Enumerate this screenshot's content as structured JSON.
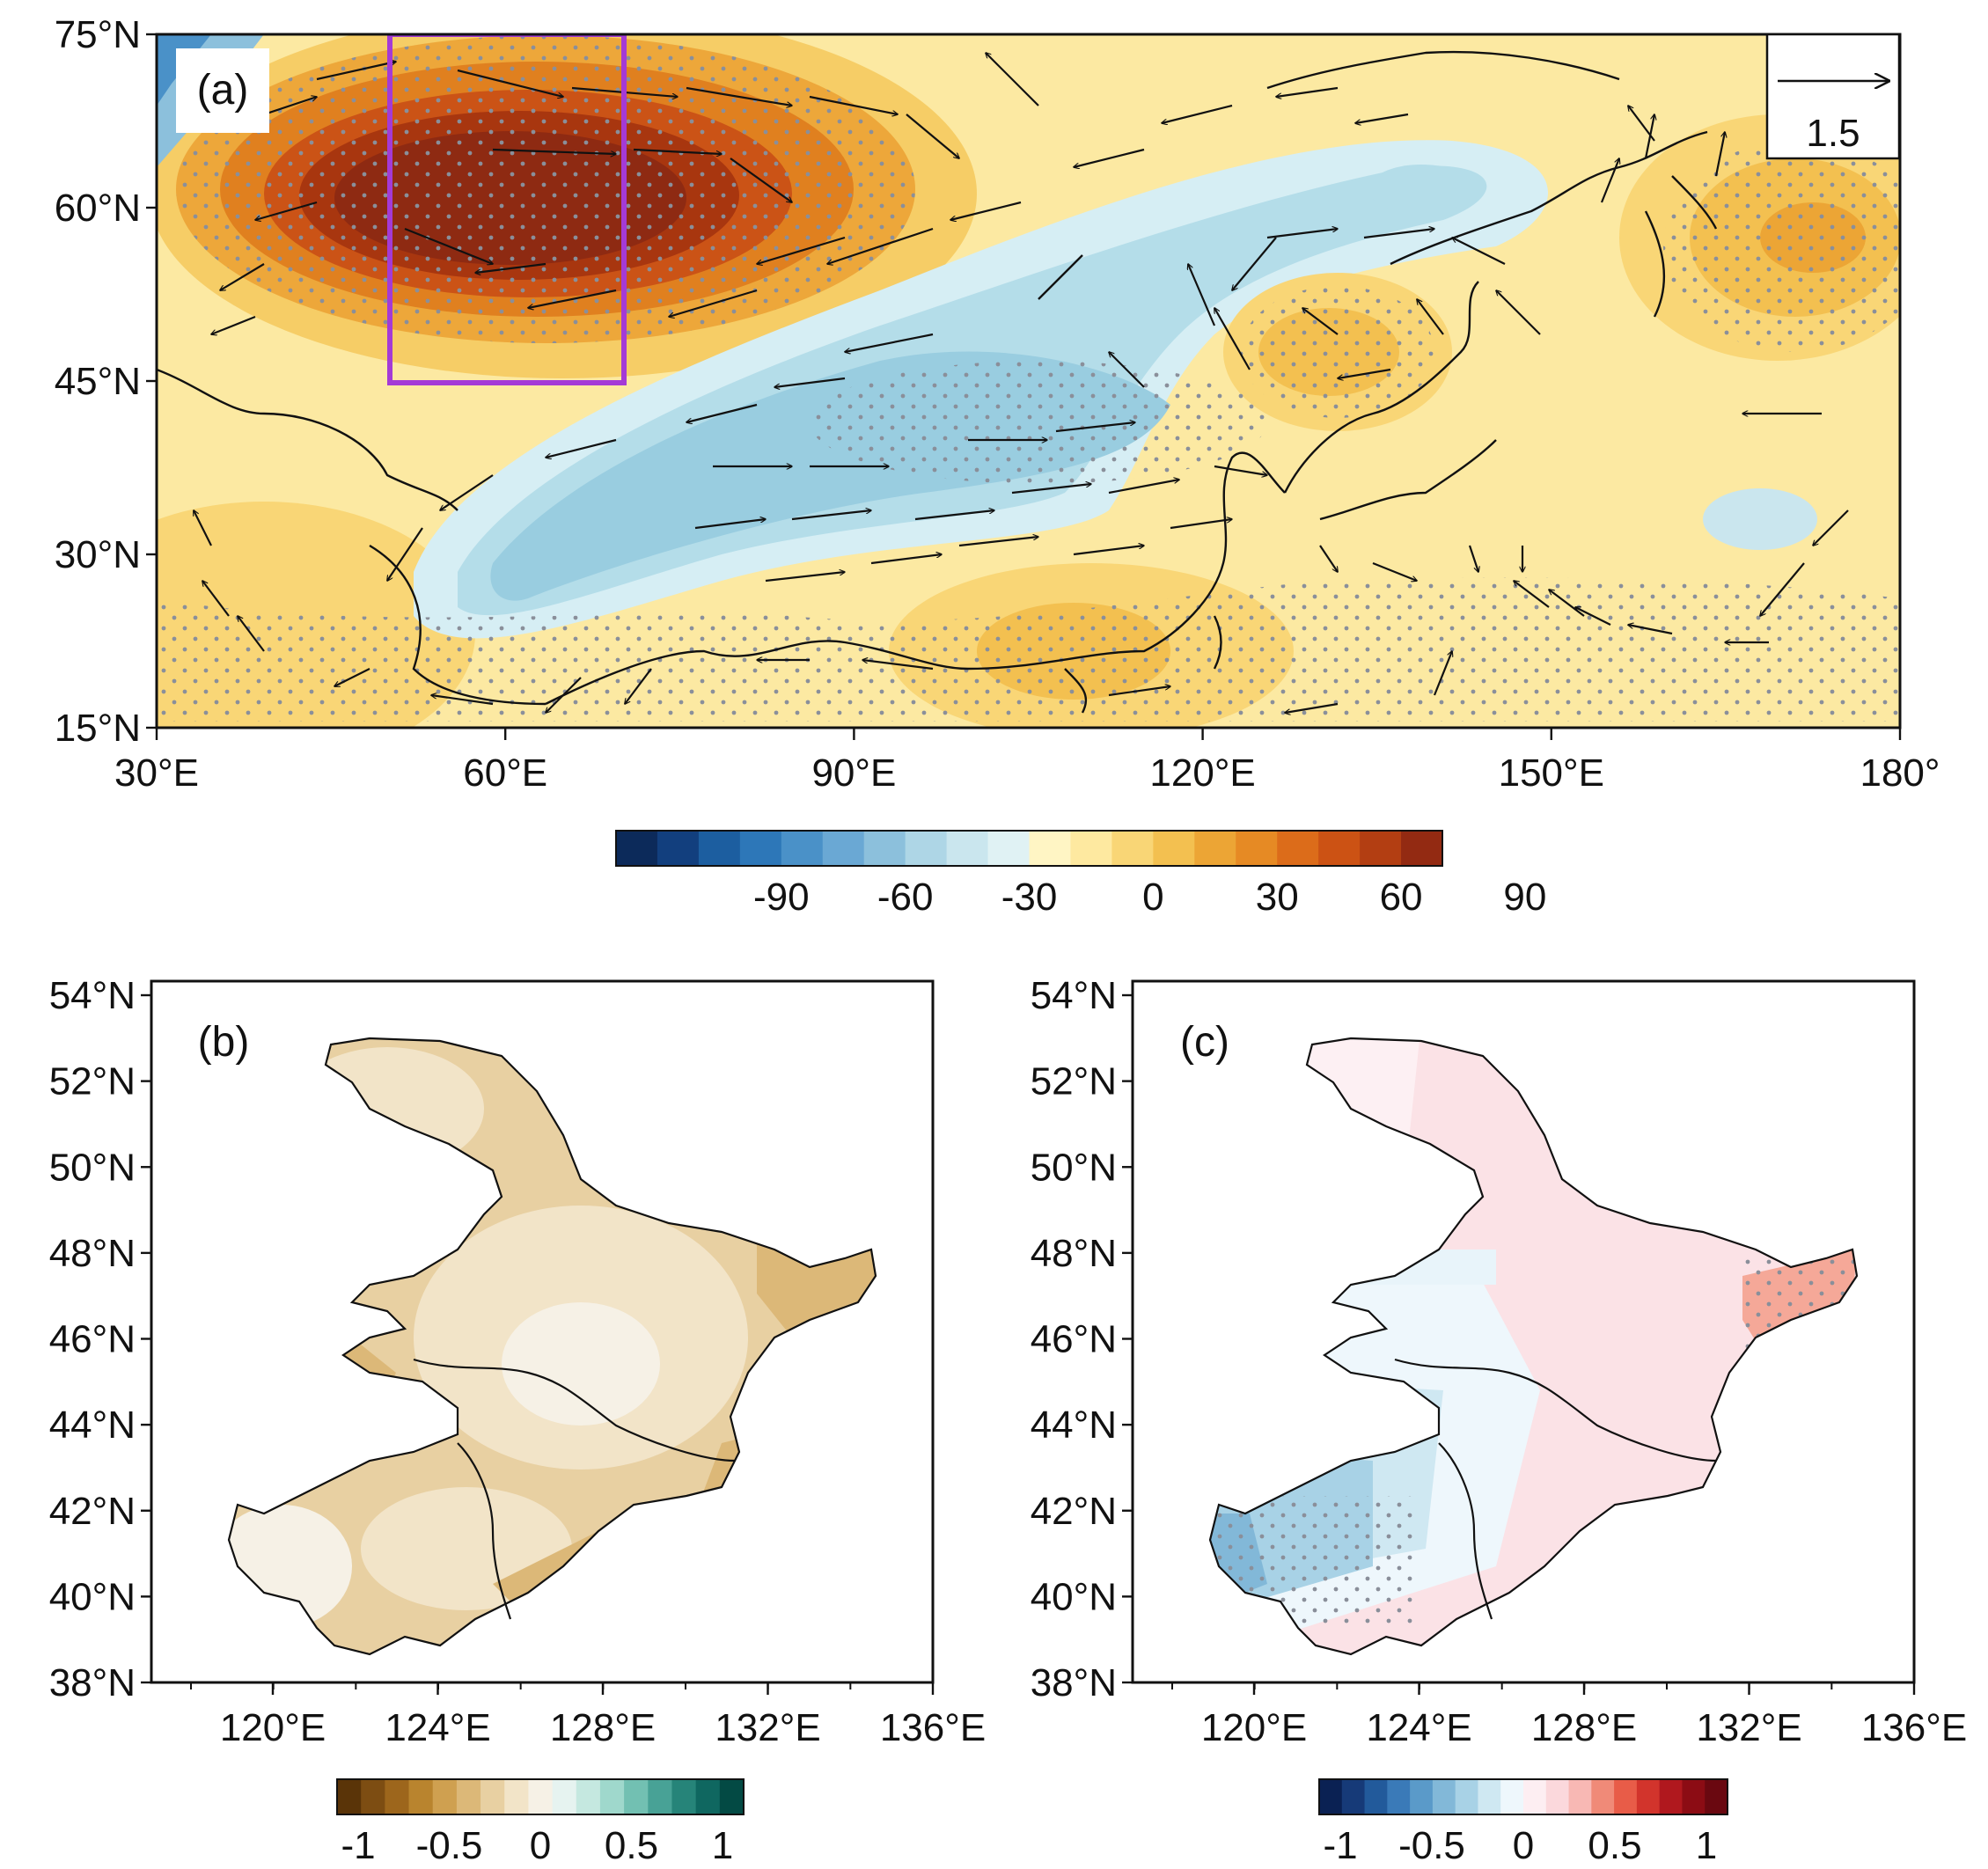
{
  "panel_a": {
    "label": "(a)",
    "lat_labels": [
      "75°N",
      "60°N",
      "45°N",
      "30°N",
      "15°N"
    ],
    "lon_labels": [
      "30°E",
      "60°E",
      "90°E",
      "120°E",
      "150°E",
      "180°"
    ],
    "reference_vector": "1.5",
    "colorbar": {
      "labels": [
        "-90",
        "-60",
        "-30",
        "0",
        "30",
        "60",
        "90"
      ],
      "colors": [
        "#0c2a5a",
        "#123f7e",
        "#1c5ea0",
        "#2d77b8",
        "#4a91c8",
        "#6aa8d4",
        "#8cc0dc",
        "#aed6e6",
        "#cae6ee",
        "#e0f2f4",
        "#fff5c4",
        "#fee9a0",
        "#f9d676",
        "#f3c050",
        "#eca535",
        "#e68a24",
        "#dc6c1a",
        "#cc5214",
        "#b33e12",
        "#932a12"
      ]
    },
    "box_color": "#a43ad6"
  },
  "panel_b": {
    "label": "(b)",
    "lat_labels": [
      "54°N",
      "52°N",
      "50°N",
      "48°N",
      "46°N",
      "44°N",
      "42°N",
      "40°N",
      "38°N"
    ],
    "lon_labels": [
      "120°E",
      "124°E",
      "128°E",
      "132°E",
      "136°E"
    ],
    "colorbar": {
      "labels": [
        "-1",
        "-0.5",
        "0",
        "0.5",
        "1"
      ],
      "colors": [
        "#5a3408",
        "#7d4d12",
        "#9d661c",
        "#b9842e",
        "#cfa050",
        "#dcb878",
        "#e8d0a2",
        "#f2e4c8",
        "#f6f1e6",
        "#e6f3f0",
        "#c5e8e0",
        "#9fd8cc",
        "#72c0b2",
        "#48a296",
        "#268479",
        "#0f6760",
        "#034a44"
      ]
    }
  },
  "panel_c": {
    "label": "(c)",
    "lat_labels": [
      "54°N",
      "52°N",
      "50°N",
      "48°N",
      "46°N",
      "44°N",
      "42°N",
      "40°N",
      "38°N"
    ],
    "lon_labels": [
      "120°E",
      "124°E",
      "128°E",
      "132°E",
      "136°E"
    ],
    "colorbar": {
      "labels": [
        "-1",
        "-0.5",
        "0",
        "0.5",
        "1"
      ],
      "colors": [
        "#0a2153",
        "#163a78",
        "#225a9b",
        "#3a7ab8",
        "#5a9ac9",
        "#82b8d8",
        "#a8d2e6",
        "#cfe8f2",
        "#eef7fc",
        "#fdeef2",
        "#fbd8dc",
        "#f8b8b4",
        "#f08a78",
        "#e85c48",
        "#d2342c",
        "#b0181e",
        "#8c0c14",
        "#6a0810"
      ]
    }
  }
}
